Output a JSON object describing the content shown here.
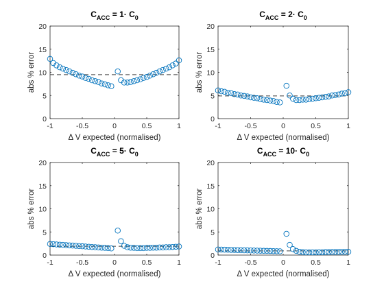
{
  "colors": {
    "marker": "#0072BD",
    "dashed_line": "#404040",
    "axes": "#262626",
    "background": "#ffffff"
  },
  "chart_data": [
    {
      "type": "scatter",
      "title": {
        "main": "C",
        "sub": "ACC",
        "rest": " = 1· C",
        "sub2": "0"
      },
      "xlabel": "Δ V expected (normalised)",
      "ylabel": "abs % error",
      "xlim": [
        -1,
        1
      ],
      "ylim": [
        0,
        20
      ],
      "xticks": [
        "-1",
        "-0.5",
        "0",
        "0.5",
        "1"
      ],
      "yticks": [
        "0",
        "5",
        "10",
        "15",
        "20"
      ],
      "grid": false,
      "reference_line": {
        "y": 9.5,
        "style": "dashed"
      },
      "x": [
        -1,
        -0.95,
        -0.9,
        -0.85,
        -0.8,
        -0.75,
        -0.7,
        -0.65,
        -0.6,
        -0.55,
        -0.5,
        -0.45,
        -0.4,
        -0.35,
        -0.3,
        -0.25,
        -0.2,
        -0.15,
        -0.1,
        -0.05,
        0.05,
        0.1,
        0.15,
        0.2,
        0.25,
        0.3,
        0.35,
        0.4,
        0.45,
        0.5,
        0.55,
        0.6,
        0.65,
        0.7,
        0.75,
        0.8,
        0.85,
        0.9,
        0.95,
        1
      ],
      "y": [
        12.9,
        12.0,
        11.5,
        11.1,
        10.8,
        10.5,
        10.2,
        9.9,
        9.6,
        9.3,
        9.1,
        8.8,
        8.6,
        8.3,
        8.1,
        7.9,
        7.6,
        7.4,
        7.2,
        7.0,
        10.2,
        8.3,
        7.8,
        7.8,
        7.9,
        8.1,
        8.3,
        8.5,
        8.8,
        9.0,
        9.3,
        9.6,
        9.9,
        10.2,
        10.5,
        10.8,
        11.1,
        11.5,
        11.9,
        12.6
      ]
    },
    {
      "type": "scatter",
      "title": {
        "main": "C",
        "sub": "ACC",
        "rest": " = 2· C",
        "sub2": "0"
      },
      "xlabel": "Δ V expected (normalised)",
      "ylabel": "abs % error",
      "xlim": [
        -1,
        1
      ],
      "ylim": [
        0,
        20
      ],
      "xticks": [
        "-1",
        "-0.5",
        "0",
        "0.5",
        "1"
      ],
      "yticks": [
        "0",
        "5",
        "10",
        "15",
        "20"
      ],
      "grid": false,
      "reference_line": {
        "y": 4.9,
        "style": "dashed"
      },
      "x": [
        -1,
        -0.95,
        -0.9,
        -0.85,
        -0.8,
        -0.75,
        -0.7,
        -0.65,
        -0.6,
        -0.55,
        -0.5,
        -0.45,
        -0.4,
        -0.35,
        -0.3,
        -0.25,
        -0.2,
        -0.15,
        -0.1,
        -0.05,
        0.05,
        0.1,
        0.15,
        0.2,
        0.25,
        0.3,
        0.35,
        0.4,
        0.45,
        0.5,
        0.55,
        0.6,
        0.65,
        0.7,
        0.75,
        0.8,
        0.85,
        0.9,
        0.95,
        1
      ],
      "y": [
        6.1,
        5.9,
        5.8,
        5.6,
        5.5,
        5.3,
        5.2,
        5.0,
        4.9,
        4.8,
        4.6,
        4.5,
        4.4,
        4.2,
        4.1,
        4.0,
        3.9,
        3.8,
        3.6,
        3.5,
        7.1,
        5.0,
        4.3,
        4.0,
        4.0,
        4.1,
        4.1,
        4.2,
        4.3,
        4.4,
        4.5,
        4.6,
        4.7,
        4.8,
        5.0,
        5.1,
        5.2,
        5.4,
        5.5,
        5.7
      ]
    },
    {
      "type": "scatter",
      "title": {
        "main": "C",
        "sub": "ACC",
        "rest": " = 5· C",
        "sub2": "0"
      },
      "xlabel": "Δ V expected (normalised)",
      "ylabel": "abs % error",
      "xlim": [
        -1,
        1
      ],
      "ylim": [
        0,
        20
      ],
      "xticks": [
        "-1",
        "-0.5",
        "0",
        "0.5",
        "1"
      ],
      "yticks": [
        "0",
        "5",
        "10",
        "15",
        "20"
      ],
      "grid": false,
      "reference_line": {
        "y": 1.9,
        "style": "dashed"
      },
      "x": [
        -1,
        -0.95,
        -0.9,
        -0.85,
        -0.8,
        -0.75,
        -0.7,
        -0.65,
        -0.6,
        -0.55,
        -0.5,
        -0.45,
        -0.4,
        -0.35,
        -0.3,
        -0.25,
        -0.2,
        -0.15,
        -0.1,
        -0.05,
        0.05,
        0.1,
        0.15,
        0.2,
        0.25,
        0.3,
        0.35,
        0.4,
        0.45,
        0.5,
        0.55,
        0.6,
        0.65,
        0.7,
        0.75,
        0.8,
        0.85,
        0.9,
        0.95,
        1
      ],
      "y": [
        2.4,
        2.35,
        2.3,
        2.25,
        2.2,
        2.15,
        2.1,
        2.05,
        2.0,
        1.95,
        1.9,
        1.85,
        1.8,
        1.75,
        1.7,
        1.65,
        1.6,
        1.55,
        1.5,
        1.45,
        5.3,
        3.0,
        2.0,
        1.7,
        1.6,
        1.55,
        1.5,
        1.5,
        1.5,
        1.55,
        1.55,
        1.6,
        1.6,
        1.65,
        1.65,
        1.7,
        1.7,
        1.75,
        1.8,
        1.85
      ]
    },
    {
      "type": "scatter",
      "title": {
        "main": "C",
        "sub": "ACC",
        "rest": " = 10· C",
        "sub2": "0"
      },
      "xlabel": "Δ V expected (normalised)",
      "ylabel": "abs % error",
      "xlim": [
        -1,
        1
      ],
      "ylim": [
        0,
        20
      ],
      "xticks": [
        "-1",
        "-0.5",
        "0",
        "0.5",
        "1"
      ],
      "yticks": [
        "0",
        "5",
        "10",
        "15",
        "20"
      ],
      "grid": false,
      "reference_line": {
        "y": 0.9,
        "style": "dashed"
      },
      "x": [
        -1,
        -0.95,
        -0.9,
        -0.85,
        -0.8,
        -0.75,
        -0.7,
        -0.65,
        -0.6,
        -0.55,
        -0.5,
        -0.45,
        -0.4,
        -0.35,
        -0.3,
        -0.25,
        -0.2,
        -0.15,
        -0.1,
        -0.05,
        0.05,
        0.1,
        0.15,
        0.2,
        0.25,
        0.3,
        0.35,
        0.4,
        0.45,
        0.5,
        0.55,
        0.6,
        0.65,
        0.7,
        0.75,
        0.8,
        0.85,
        0.9,
        0.95,
        1
      ],
      "y": [
        1.2,
        1.18,
        1.16,
        1.14,
        1.12,
        1.1,
        1.08,
        1.06,
        1.04,
        1.02,
        1.0,
        0.98,
        0.96,
        0.94,
        0.92,
        0.9,
        0.88,
        0.86,
        0.84,
        0.82,
        4.6,
        2.2,
        1.3,
        0.9,
        0.7,
        0.65,
        0.6,
        0.6,
        0.6,
        0.6,
        0.62,
        0.62,
        0.64,
        0.64,
        0.66,
        0.66,
        0.68,
        0.68,
        0.7,
        0.7
      ]
    }
  ]
}
